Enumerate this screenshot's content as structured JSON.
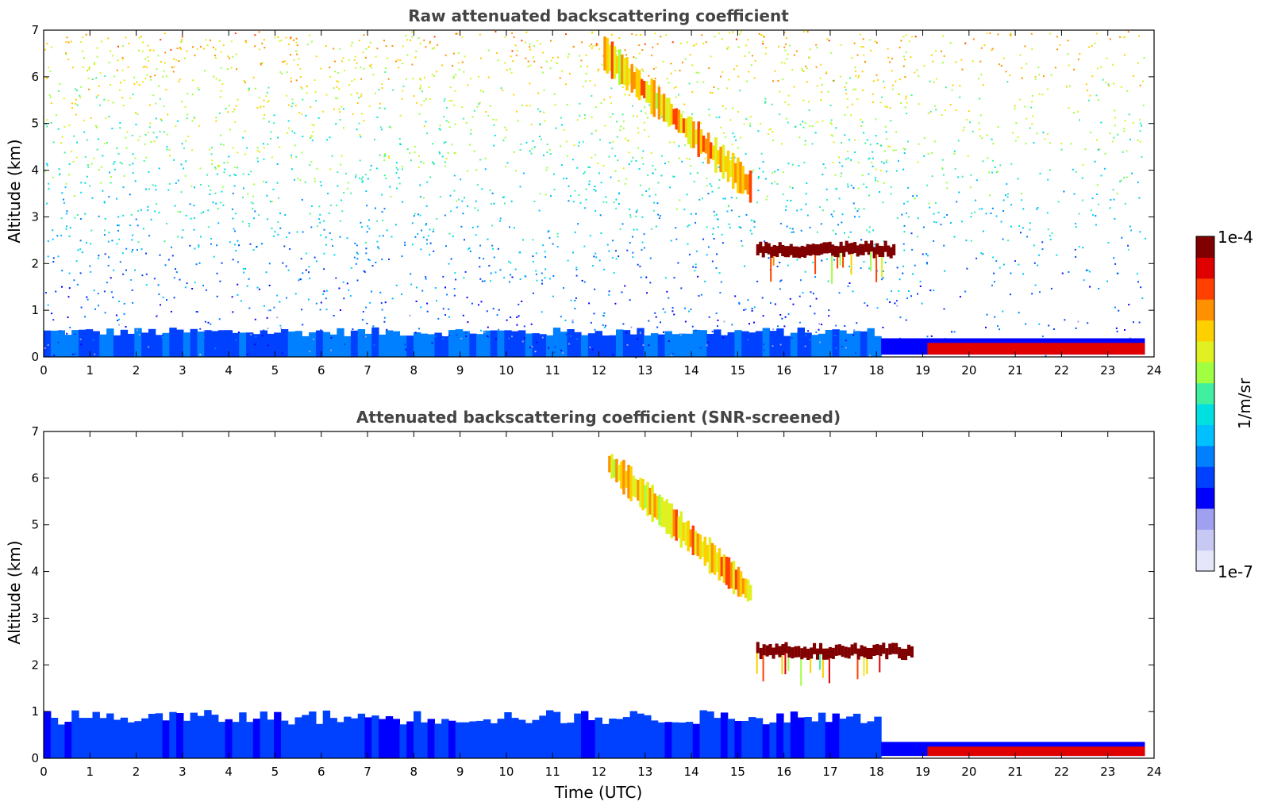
{
  "chart_data": [
    {
      "type": "heatmap",
      "title": "Raw attenuated backscattering coefficient",
      "xlabel": "",
      "ylabel": "Altitude (km)",
      "xlim": [
        0,
        24
      ],
      "ylim": [
        0,
        7
      ],
      "xticks": [
        "0",
        "1",
        "2",
        "3",
        "4",
        "5",
        "6",
        "7",
        "8",
        "9",
        "10",
        "11",
        "12",
        "13",
        "14",
        "15",
        "16",
        "17",
        "18",
        "19",
        "20",
        "21",
        "22",
        "23",
        "24"
      ],
      "yticks": [
        "0",
        "1",
        "2",
        "3",
        "4",
        "5",
        "6",
        "7"
      ],
      "features": [
        {
          "kind": "boundary_layer",
          "t": [
            0,
            18.1
          ],
          "z_top": 0.55,
          "level": 0.3
        },
        {
          "kind": "noise",
          "t": [
            0,
            18.5
          ],
          "z": [
            0,
            7
          ],
          "level": 0.45
        },
        {
          "kind": "noise_sparse",
          "t": [
            18.5,
            23.8
          ],
          "z": [
            0,
            7
          ],
          "level": 0.45
        },
        {
          "kind": "virga",
          "t": [
            12.1,
            15.3
          ],
          "z_start": 6.5,
          "z_end": 3.6,
          "level": 0.7
        },
        {
          "kind": "cloud_layer",
          "t": [
            15.4,
            18.4
          ],
          "z": 2.3,
          "level": 1.0
        },
        {
          "kind": "fog_layer",
          "t": [
            18.1,
            23.8
          ],
          "z": [
            0.05,
            0.4
          ],
          "level": 0.95
        }
      ]
    },
    {
      "type": "heatmap",
      "title": "Attenuated backscattering coefficient (SNR-screened)",
      "xlabel": "Time (UTC)",
      "ylabel": "Altitude (km)",
      "xlim": [
        0,
        24
      ],
      "ylim": [
        0,
        7
      ],
      "xticks": [
        "0",
        "1",
        "2",
        "3",
        "4",
        "5",
        "6",
        "7",
        "8",
        "9",
        "10",
        "11",
        "12",
        "13",
        "14",
        "15",
        "16",
        "17",
        "18",
        "19",
        "20",
        "21",
        "22",
        "23",
        "24"
      ],
      "yticks": [
        "0",
        "1",
        "2",
        "3",
        "4",
        "5",
        "6",
        "7"
      ],
      "features": [
        {
          "kind": "boundary_layer",
          "t": [
            0,
            18.1
          ],
          "z_top": 0.9,
          "level": 0.25
        },
        {
          "kind": "virga",
          "t": [
            12.2,
            15.3
          ],
          "z_start": 6.3,
          "z_end": 3.5,
          "level": 0.7
        },
        {
          "kind": "cloud_layer",
          "t": [
            15.4,
            18.8
          ],
          "z": 2.3,
          "level": 1.0
        },
        {
          "kind": "fog_layer",
          "t": [
            18.1,
            23.8
          ],
          "z": [
            0.05,
            0.35
          ],
          "level": 0.95
        }
      ]
    }
  ],
  "colorbar": {
    "label": "1/m/sr",
    "max_label": "1e-4",
    "min_label": "1e-7",
    "colors": [
      "#e6e6fa",
      "#c8c8f5",
      "#a0a0f0",
      "#0000ff",
      "#0040ff",
      "#0080ff",
      "#00c0ff",
      "#00e0e0",
      "#40f0a0",
      "#a0ff40",
      "#e0f020",
      "#ffd000",
      "#ff9000",
      "#ff4000",
      "#e00000",
      "#800000"
    ]
  }
}
